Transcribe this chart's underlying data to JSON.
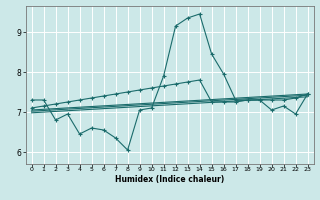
{
  "xlabel": "Humidex (Indice chaleur)",
  "background_color": "#cce8e8",
  "grid_color": "#ffffff",
  "line_color": "#1a6b6b",
  "xlim": [
    -0.5,
    23.5
  ],
  "ylim": [
    5.7,
    9.65
  ],
  "yticks": [
    6,
    7,
    8,
    9
  ],
  "xticks": [
    0,
    1,
    2,
    3,
    4,
    5,
    6,
    7,
    8,
    9,
    10,
    11,
    12,
    13,
    14,
    15,
    16,
    17,
    18,
    19,
    20,
    21,
    22,
    23
  ],
  "line1_x": [
    0,
    1,
    2,
    3,
    4,
    5,
    6,
    7,
    8,
    9,
    10,
    11,
    12,
    13,
    14,
    15,
    16,
    17,
    18,
    19,
    20,
    21,
    22,
    23
  ],
  "line1_y": [
    7.3,
    7.3,
    6.8,
    6.95,
    6.45,
    6.6,
    6.55,
    6.35,
    6.05,
    7.05,
    7.1,
    7.9,
    9.15,
    9.35,
    9.45,
    8.45,
    7.95,
    7.3,
    7.3,
    7.3,
    7.05,
    7.15,
    6.95,
    7.45
  ],
  "line2_x": [
    0,
    1,
    2,
    3,
    4,
    5,
    6,
    7,
    8,
    9,
    10,
    11,
    12,
    13,
    14,
    15,
    16,
    17,
    18,
    19,
    20,
    21,
    22,
    23
  ],
  "line2_y": [
    7.1,
    7.15,
    7.2,
    7.25,
    7.3,
    7.35,
    7.4,
    7.45,
    7.5,
    7.55,
    7.6,
    7.65,
    7.7,
    7.75,
    7.8,
    7.25,
    7.25,
    7.25,
    7.3,
    7.3,
    7.3,
    7.3,
    7.35,
    7.45
  ],
  "reg1": [
    7.05,
    7.45
  ],
  "reg2": [
    6.98,
    7.38
  ],
  "reg3": [
    7.02,
    7.42
  ]
}
